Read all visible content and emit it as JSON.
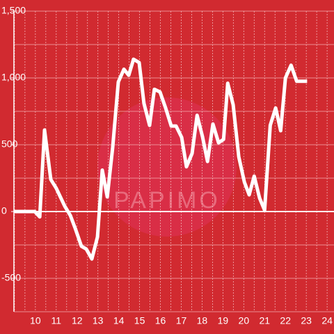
{
  "chart_data": {
    "type": "line",
    "watermark": "PAPIMO",
    "x": [
      8.97,
      9.97,
      10.21,
      10.44,
      10.74,
      11.0,
      11.41,
      11.68,
      11.91,
      12.21,
      12.44,
      12.71,
      12.98,
      13.21,
      13.45,
      13.71,
      13.98,
      14.25,
      14.48,
      14.71,
      14.98,
      15.21,
      15.48,
      15.71,
      15.98,
      16.25,
      16.52,
      16.75,
      17.02,
      17.25,
      17.52,
      17.76,
      18.02,
      18.26,
      18.52,
      18.79,
      19.03,
      19.23,
      19.49,
      19.76,
      20.03,
      20.26,
      20.5,
      20.76,
      21.0,
      21.27,
      21.53,
      21.77,
      22.0,
      22.27,
      22.54,
      23.04
    ],
    "series": [
      {
        "color": "#ffffff",
        "values": [
          0,
          0,
          -40,
          610,
          240,
          175,
          40,
          -30,
          -125,
          -260,
          -280,
          -355,
          -190,
          310,
          110,
          480,
          970,
          1065,
          1020,
          1140,
          1115,
          810,
          645,
          915,
          895,
          775,
          640,
          640,
          555,
          335,
          435,
          720,
          560,
          375,
          655,
          515,
          540,
          960,
          800,
          410,
          220,
          125,
          265,
          100,
          10,
          645,
          775,
          605,
          1000,
          1095,
          975,
          975
        ]
      }
    ],
    "xlim": [
      8.97,
      24.33
    ],
    "ylim": [
      -750,
      1500
    ],
    "xticks": [
      10,
      11,
      12,
      13,
      14,
      15,
      16,
      17,
      18,
      19,
      20,
      21,
      22,
      23,
      24
    ],
    "yticks": [
      {
        "value": -500,
        "label": "-500"
      },
      0,
      500,
      {
        "value": 1000,
        "label": "1,000"
      },
      {
        "value": 1500,
        "label": "1,500"
      }
    ],
    "xgrid": [
      9,
      9.5,
      10,
      10.5,
      11,
      11.5,
      12,
      12.5,
      13,
      13.5,
      14,
      14.5,
      15,
      15.5,
      16,
      16.5,
      17,
      17.5,
      18,
      18.5,
      19,
      19.5,
      20,
      20.5,
      21,
      21.5,
      22,
      22.5,
      23,
      23.5,
      24
    ],
    "ygrid": [
      -750,
      -500,
      -250,
      0,
      250,
      500,
      750,
      1000,
      1250,
      1500
    ]
  }
}
